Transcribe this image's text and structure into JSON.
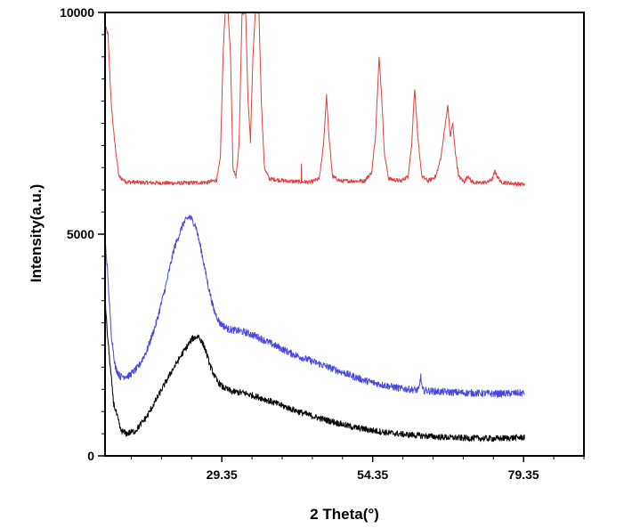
{
  "chart_data": {
    "type": "line",
    "title": "",
    "xlabel": "2 Theta(°)",
    "ylabel": "Intensity(a.u.)",
    "xlim": [
      10,
      89.35
    ],
    "ylim": [
      0,
      10000
    ],
    "xticks": [
      {
        "value": 29.35,
        "label": "29.35"
      },
      {
        "value": 54.35,
        "label": "54.35"
      },
      {
        "value": 79.35,
        "label": "79.35"
      }
    ],
    "yticks": [
      {
        "value": 0,
        "label": "0"
      },
      {
        "value": 5000,
        "label": "5000"
      },
      {
        "value": 10000,
        "label": "10000"
      }
    ],
    "grid": false,
    "series": [
      {
        "name": "red",
        "color": "#e04040",
        "noise": 45,
        "points": [
          [
            10.0,
            9700
          ],
          [
            10.5,
            9500
          ],
          [
            11.0,
            8000
          ],
          [
            11.5,
            7200
          ],
          [
            12.3,
            6300
          ],
          [
            13.5,
            6180
          ],
          [
            17,
            6160
          ],
          [
            22,
            6150
          ],
          [
            27,
            6170
          ],
          [
            28.5,
            6220
          ],
          [
            29.1,
            6700
          ],
          [
            29.6,
            9200
          ],
          [
            29.9,
            10000
          ],
          [
            30.4,
            10000
          ],
          [
            30.8,
            9000
          ],
          [
            31.2,
            6500
          ],
          [
            31.7,
            6300
          ],
          [
            32.2,
            7000
          ],
          [
            32.7,
            10000
          ],
          [
            33.3,
            10000
          ],
          [
            33.7,
            8000
          ],
          [
            34.1,
            7100
          ],
          [
            34.5,
            9000
          ],
          [
            34.9,
            10000
          ],
          [
            35.5,
            10000
          ],
          [
            35.9,
            8000
          ],
          [
            36.4,
            6500
          ],
          [
            37.2,
            6250
          ],
          [
            40,
            6200
          ],
          [
            42.5,
            6180
          ],
          [
            42.55,
            6600
          ],
          [
            42.6,
            6180
          ],
          [
            44,
            6170
          ],
          [
            45.5,
            6250
          ],
          [
            46.2,
            7000
          ],
          [
            46.7,
            8150
          ],
          [
            47.1,
            7200
          ],
          [
            47.7,
            6300
          ],
          [
            49,
            6200
          ],
          [
            53,
            6200
          ],
          [
            54.2,
            6400
          ],
          [
            54.8,
            7200
          ],
          [
            55.4,
            9000
          ],
          [
            55.8,
            8200
          ],
          [
            56.3,
            6800
          ],
          [
            57,
            6250
          ],
          [
            59,
            6200
          ],
          [
            60.2,
            6300
          ],
          [
            60.8,
            7000
          ],
          [
            61.3,
            8300
          ],
          [
            61.8,
            7200
          ],
          [
            62.5,
            6300
          ],
          [
            63.5,
            6200
          ],
          [
            64.8,
            6300
          ],
          [
            65.6,
            6700
          ],
          [
            66.3,
            7400
          ],
          [
            66.8,
            7900
          ],
          [
            67.2,
            7200
          ],
          [
            67.6,
            7500
          ],
          [
            68,
            6900
          ],
          [
            68.6,
            6300
          ],
          [
            69.5,
            6180
          ],
          [
            70.2,
            6320
          ],
          [
            70.6,
            6200
          ],
          [
            71.5,
            6150
          ],
          [
            73.5,
            6180
          ],
          [
            74.2,
            6250
          ],
          [
            74.6,
            6420
          ],
          [
            75,
            6300
          ],
          [
            75.6,
            6180
          ],
          [
            77,
            6150
          ],
          [
            79.5,
            6120
          ]
        ]
      },
      {
        "name": "blue",
        "color": "#4848e0",
        "noise": 80,
        "points": [
          [
            10.0,
            4900
          ],
          [
            10.4,
            4200
          ],
          [
            11.0,
            2800
          ],
          [
            11.7,
            2000
          ],
          [
            12.5,
            1790
          ],
          [
            14,
            1810
          ],
          [
            15.5,
            2000
          ],
          [
            17,
            2400
          ],
          [
            18.5,
            3000
          ],
          [
            20,
            3800
          ],
          [
            21.5,
            4700
          ],
          [
            23,
            5250
          ],
          [
            24,
            5400
          ],
          [
            25,
            5200
          ],
          [
            26,
            4600
          ],
          [
            27,
            3900
          ],
          [
            28,
            3300
          ],
          [
            29,
            3000
          ],
          [
            30.5,
            2850
          ],
          [
            33,
            2800
          ],
          [
            35,
            2700
          ],
          [
            38,
            2500
          ],
          [
            41,
            2300
          ],
          [
            44,
            2150
          ],
          [
            47,
            2000
          ],
          [
            50,
            1850
          ],
          [
            53,
            1700
          ],
          [
            56,
            1600
          ],
          [
            59,
            1520
          ],
          [
            62,
            1480
          ],
          [
            62.3,
            1800
          ],
          [
            62.6,
            1480
          ],
          [
            65,
            1450
          ],
          [
            70,
            1420
          ],
          [
            75,
            1400
          ],
          [
            79.5,
            1420
          ]
        ]
      },
      {
        "name": "black",
        "color": "#000000",
        "noise": 70,
        "points": [
          [
            10.0,
            3600
          ],
          [
            10.3,
            2900
          ],
          [
            10.8,
            2100
          ],
          [
            11.4,
            1200
          ],
          [
            12.0,
            900
          ],
          [
            12.6,
            580
          ],
          [
            13.5,
            500
          ],
          [
            15,
            560
          ],
          [
            17,
            900
          ],
          [
            19,
            1400
          ],
          [
            21,
            1900
          ],
          [
            23,
            2350
          ],
          [
            24.5,
            2650
          ],
          [
            25.5,
            2700
          ],
          [
            26.5,
            2450
          ],
          [
            27.5,
            2000
          ],
          [
            28.5,
            1700
          ],
          [
            29.5,
            1550
          ],
          [
            31,
            1450
          ],
          [
            33,
            1420
          ],
          [
            36,
            1300
          ],
          [
            39,
            1150
          ],
          [
            42,
            1000
          ],
          [
            45,
            870
          ],
          [
            48,
            760
          ],
          [
            51,
            650
          ],
          [
            54,
            580
          ],
          [
            57,
            520
          ],
          [
            60,
            480
          ],
          [
            63,
            450
          ],
          [
            66,
            420
          ],
          [
            70,
            400
          ],
          [
            75,
            390
          ],
          [
            79.5,
            420
          ]
        ]
      }
    ]
  }
}
